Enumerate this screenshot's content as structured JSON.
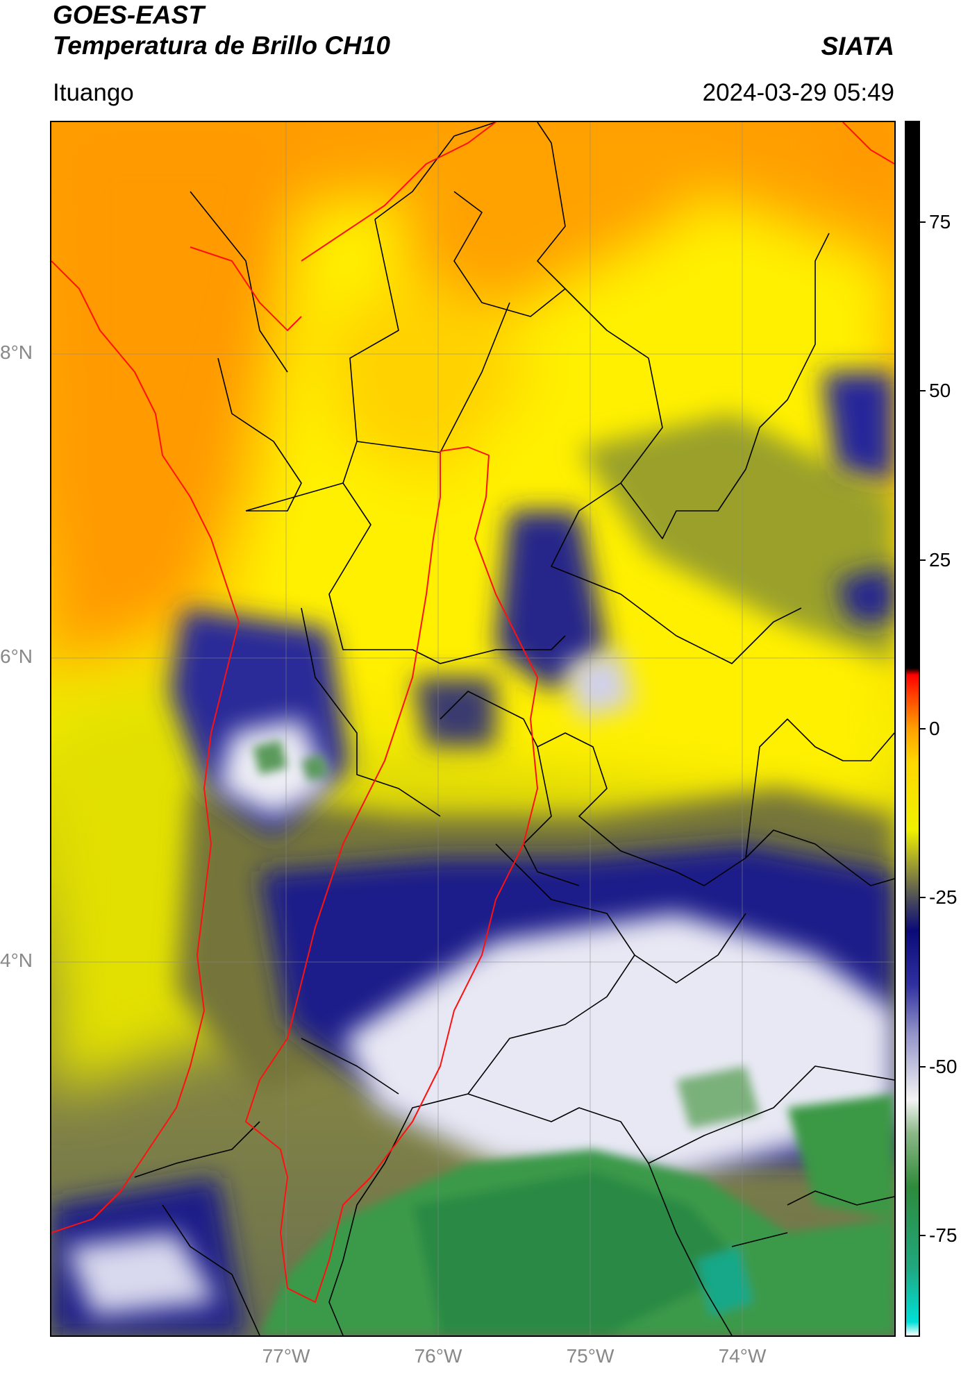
{
  "header": {
    "satellite": "GOES-EAST",
    "product": "Temperatura de Brillo CH10",
    "organization": "SIATA",
    "region": "Ituango",
    "timestamp": "2024-03-29 05:49"
  },
  "map": {
    "lat_labels": [
      "8°N",
      "6°N",
      "4°N"
    ],
    "lon_labels": [
      "77°W",
      "76°W",
      "75°W",
      "74°W"
    ],
    "lat_values": [
      8,
      6,
      4
    ],
    "lon_values": [
      -77,
      -76,
      -75,
      -74
    ]
  },
  "colorbar": {
    "ticks": [
      "75",
      "50",
      "25",
      "0",
      "-25",
      "-50",
      "-75"
    ],
    "tick_values": [
      75,
      50,
      25,
      0,
      -25,
      -50,
      -75
    ],
    "range": [
      -90,
      90
    ],
    "stops": [
      {
        "v": -90,
        "c": "#ffffff"
      },
      {
        "v": -88,
        "c": "#00e0d8"
      },
      {
        "v": -80,
        "c": "#20a880"
      },
      {
        "v": -68,
        "c": "#2e8a3a"
      },
      {
        "v": -60,
        "c": "#8cb888"
      },
      {
        "v": -55,
        "c": "#f4f4f4"
      },
      {
        "v": -45,
        "c": "#9090c8"
      },
      {
        "v": -38,
        "c": "#3030a0"
      },
      {
        "v": -30,
        "c": "#0a0a78"
      },
      {
        "v": -26,
        "c": "#404060"
      },
      {
        "v": -20,
        "c": "#a0a030"
      },
      {
        "v": -15,
        "c": "#f0f000"
      },
      {
        "v": -5,
        "c": "#ffd800"
      },
      {
        "v": 0,
        "c": "#ffa000"
      },
      {
        "v": 5,
        "c": "#ff4000"
      },
      {
        "v": 8,
        "c": "#ff0000"
      },
      {
        "v": 9,
        "c": "#000000"
      },
      {
        "v": 90,
        "c": "#000000"
      }
    ]
  }
}
